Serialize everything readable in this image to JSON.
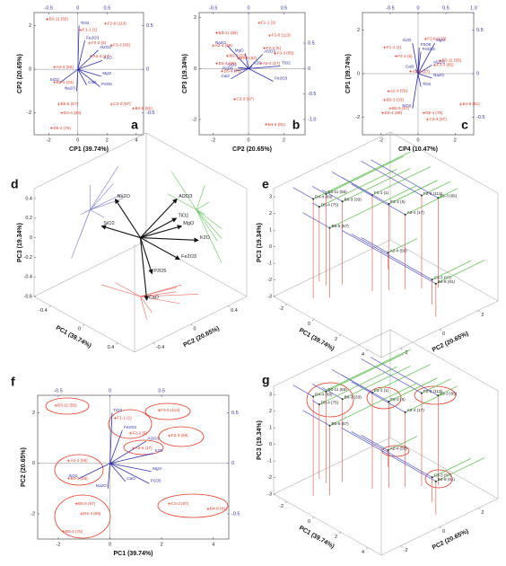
{
  "chart_data": [
    {
      "type": "biplot",
      "panel": "a",
      "xlabel": "CP1 (39.74%)",
      "ylabel": "CP2 (20.65%)",
      "xlim": [
        -3,
        4.5
      ],
      "xticks": [
        -2,
        0,
        2,
        4
      ],
      "ylim": [
        -3,
        2.6
      ],
      "yticks": [
        -2,
        0,
        2
      ],
      "x2lim": [
        -0.75,
        1.125
      ],
      "x2ticks": [
        -0.5,
        0,
        0.5
      ],
      "y2lim": [
        -0.75,
        0.65
      ],
      "y2ticks": [
        -0.5,
        0,
        0.5
      ],
      "vector_color": "#2f2fa8",
      "sample_color": "#e03a24",
      "variables": [
        {
          "name": "TiO2",
          "x": 0.02,
          "y": 0.5
        },
        {
          "name": "Fe2O3",
          "x": 0.12,
          "y": 0.33
        },
        {
          "name": "Al2O3",
          "x": 0.35,
          "y": 0.22
        },
        {
          "name": "K2O",
          "x": 0.42,
          "y": 0.1
        },
        {
          "name": "MgO",
          "x": 0.4,
          "y": -0.08
        },
        {
          "name": "P2O5",
          "x": 0.38,
          "y": -0.2
        },
        {
          "name": "CaO",
          "x": 0.15,
          "y": -0.18
        },
        {
          "name": "Na2O",
          "x": -0.02,
          "y": -0.25
        },
        {
          "name": "SiO2",
          "x": -0.3,
          "y": -0.15
        }
      ],
      "samples": [
        {
          "name": "B3-11 (55)",
          "x": -2.1,
          "y": 2.3
        },
        {
          "name": "F1-1 (1)",
          "x": 0.2,
          "y": 1.8
        },
        {
          "name": "F2-8 (113)",
          "x": 1.9,
          "y": 2.1
        },
        {
          "name": "F2-2 (5)",
          "x": 0.8,
          "y": 1.2
        },
        {
          "name": "F3-3 (65)",
          "x": 2.3,
          "y": 1.1
        },
        {
          "name": "A3-4 (17)",
          "x": 0.9,
          "y": 0.6
        },
        {
          "name": "A2-4 (56)",
          "x": -1.6,
          "y": 0.1
        },
        {
          "name": "B0-3 (33)",
          "x": -1.6,
          "y": -0.6
        },
        {
          "name": "B5-5 (57)",
          "x": -1.3,
          "y": -1.6
        },
        {
          "name": "D4-4 (69)",
          "x": -1.1,
          "y": -2
        },
        {
          "name": "D5-4 (75)",
          "x": -1.8,
          "y": -2.7
        },
        {
          "name": "C3-3 (97)",
          "x": 2.3,
          "y": -1.6
        },
        {
          "name": "B4-8 (81)",
          "x": 3.8,
          "y": -1.8
        }
      ]
    },
    {
      "type": "biplot",
      "panel": "b",
      "xlabel": "CP2 (20.65%)",
      "ylabel": "CP3 (19.34%)",
      "xlim": [
        -2.8,
        3.2
      ],
      "xticks": [
        -2,
        0,
        2
      ],
      "ylim": [
        -2.6,
        2.2
      ],
      "yticks": [
        -2,
        0,
        2
      ],
      "x2lim": [
        -0.7,
        0.8
      ],
      "x2ticks": [
        -0.5,
        0,
        0.5
      ],
      "y2lim": [
        -1.3,
        1.1
      ],
      "y2ticks": [
        0.5,
        0,
        -0.5,
        {
          "value": -1,
          "label": "-1.0"
        }
      ],
      "vector_color": "#2f2fa8",
      "sample_color": "#e03a24",
      "variables": [
        {
          "name": "Na2O",
          "x": -0.3,
          "y": 0.45
        },
        {
          "name": "MgO",
          "x": -0.05,
          "y": 0.3
        },
        {
          "name": "Al2O3",
          "x": 0.2,
          "y": 0.28
        },
        {
          "name": "TiO2",
          "x": 0.45,
          "y": 0.05
        },
        {
          "name": "K2O",
          "x": 0.05,
          "y": 0.05
        },
        {
          "name": "SiO2",
          "x": -0.15,
          "y": 0.02
        },
        {
          "name": "P2O5",
          "x": -0.2,
          "y": -0.05
        },
        {
          "name": "CaO",
          "x": -0.25,
          "y": -0.2
        },
        {
          "name": "Fe2O3",
          "x": 0.35,
          "y": -0.25
        }
      ],
      "samples": [
        {
          "name": "B3-11 (55)",
          "x": -1.8,
          "y": 1.4
        },
        {
          "name": "F1-1 (1)",
          "x": 0.6,
          "y": 1.8
        },
        {
          "name": "F2-8 (113)",
          "x": 1.2,
          "y": 1.3
        },
        {
          "name": "F2-2 (5)",
          "x": 0.9,
          "y": 0.8
        },
        {
          "name": "F3-3 (65)",
          "x": 1.5,
          "y": 0.6
        },
        {
          "name": "A3-4 (17)",
          "x": 0.7,
          "y": 0.2
        },
        {
          "name": "A2-4 (56)",
          "x": -2,
          "y": 0.9
        },
        {
          "name": "B0-3 (33)",
          "x": -1.2,
          "y": 0.5
        },
        {
          "name": "B5-5 (57)",
          "x": -0.6,
          "y": 0.4
        },
        {
          "name": "D4-4 (69)",
          "x": -1.8,
          "y": 0.2
        },
        {
          "name": "D5-4 (75)",
          "x": -1.5,
          "y": -0.1
        },
        {
          "name": "C3-3 (97)",
          "x": -0.8,
          "y": -1.2
        },
        {
          "name": "B4-8 (81)",
          "x": 1,
          "y": -2.2
        }
      ]
    },
    {
      "type": "biplot",
      "panel": "c",
      "xlabel": "CP4 (10.47%)",
      "ylabel": "CP1 (39.74%)",
      "xlim": [
        -3,
        3
      ],
      "xticks": [
        -2,
        0,
        2
      ],
      "ylim": [
        -2.8,
        2.8
      ],
      "yticks": [
        -2,
        0,
        2
      ],
      "x2lim": [
        -1,
        1
      ],
      "x2ticks": [
        -0.5,
        0,
        0.5,
        {
          "value": 1,
          "label": "1.0"
        }
      ],
      "y2lim": [
        -0.7,
        0.7
      ],
      "y2ticks": [
        0.5,
        0,
        -0.5
      ],
      "vector_color": "#2f2fa8",
      "sample_color": "#e03a24",
      "variables": [
        {
          "name": "K2O",
          "x": -0.1,
          "y": 0.35
        },
        {
          "name": "Fe2O3",
          "x": 0.05,
          "y": 0.25
        },
        {
          "name": "P2O5",
          "x": 0.02,
          "y": 0.3
        },
        {
          "name": "MgO",
          "x": 0.3,
          "y": 0.35
        },
        {
          "name": "CaO",
          "x": -0.05,
          "y": 0.05
        },
        {
          "name": "Al2O3",
          "x": 0.25,
          "y": 0.1
        },
        {
          "name": "Na2O",
          "x": 0.25,
          "y": -0.05
        },
        {
          "name": "TiO2",
          "x": 0.05,
          "y": -0.15
        },
        {
          "name": "SiO2",
          "x": -0.1,
          "y": -0.4
        }
      ],
      "samples": [
        {
          "name": "B3-11 (55)",
          "x": 1.2,
          "y": 0.6
        },
        {
          "name": "F1-1 (1)",
          "x": -1.8,
          "y": 1.2
        },
        {
          "name": "F2-8 (113)",
          "x": 0.4,
          "y": 1.6
        },
        {
          "name": "F2-2 (5)",
          "x": -1.2,
          "y": 0.8
        },
        {
          "name": "F3-3 (65)",
          "x": 0.9,
          "y": 0.4
        },
        {
          "name": "A3-4 (17)",
          "x": -0.4,
          "y": 0.1
        },
        {
          "name": "A2-4 (56)",
          "x": -1.6,
          "y": -0.8
        },
        {
          "name": "B0-3 (33)",
          "x": -1.8,
          "y": -1.2
        },
        {
          "name": "B5-5 (57)",
          "x": -1.5,
          "y": -1.6
        },
        {
          "name": "D4-4 (69)",
          "x": -1.9,
          "y": -1.8
        },
        {
          "name": "D5-4 (75)",
          "x": 0.3,
          "y": -1.8
        },
        {
          "name": "C3-3 (97)",
          "x": 0.5,
          "y": -2.1
        },
        {
          "name": "B4-8 (81)",
          "x": 2.3,
          "y": -1.4
        }
      ]
    },
    {
      "type": "loadings3d",
      "panel": "d",
      "xlabel": "PC1 (39.74%)",
      "ylabel": "PC2 (20.65%)",
      "zlabel": "PC3 (19.34%)",
      "xlim": [
        -0.6,
        0.6
      ],
      "xticks": [
        -0.4,
        0,
        0.4
      ],
      "ylim": [
        -0.6,
        0.6
      ],
      "yticks": [
        -0.4,
        0,
        0.4
      ],
      "zlim": [
        -0.6,
        0.5
      ],
      "zticks": [
        -0.6,
        -0.4,
        -0.2,
        0,
        0.2,
        0.4
      ],
      "vector_color": "#111111",
      "floor_color": "#e8655a",
      "left_wall_color": "#7b7bd0",
      "right_wall_color": "#62c45a",
      "variables": [
        {
          "name": "Na2O",
          "x": -0.3,
          "y": 0,
          "z": 0.25
        },
        {
          "name": "SiO2",
          "x": -0.35,
          "y": -0.1,
          "z": 0
        },
        {
          "name": "Al2O3",
          "x": 0.1,
          "y": 0.3,
          "z": 0.3
        },
        {
          "name": "TiO2",
          "x": 0.15,
          "y": 0.25,
          "z": 0.15
        },
        {
          "name": "MgO",
          "x": 0.1,
          "y": 0.35,
          "z": 0
        },
        {
          "name": "K2O",
          "x": 0.3,
          "y": 0.35,
          "z": -0.05
        },
        {
          "name": "Fe2O3",
          "x": 0.3,
          "y": 0.15,
          "z": -0.15
        },
        {
          "name": "P2O5",
          "x": 0.25,
          "y": -0.1,
          "z": -0.2
        },
        {
          "name": "CaO",
          "x": 0.3,
          "y": -0.2,
          "z": -0.4
        }
      ]
    },
    {
      "type": "scores3d",
      "panel": "e",
      "xlabel": "PC1 (39.74%)",
      "ylabel": "PC2 (20.65%)",
      "zlabel": "PC3 (19.34%)",
      "xlim": [
        -3,
        5
      ],
      "xticks": [
        -2,
        0,
        2,
        4
      ],
      "ylim": [
        -3,
        3
      ],
      "yticks": [
        -2,
        0,
        2
      ],
      "zlim": [
        -3,
        3.5
      ],
      "zticks": [
        -3,
        -2,
        -1,
        0,
        1,
        2,
        3
      ],
      "sample_color": "#222222",
      "floor_color": "#e8655a",
      "left_wall_color": "#5a5ac8",
      "right_wall_color": "#55bb44",
      "samples": [
        {
          "name": "B3-11 (55)",
          "x": -2,
          "y": -1,
          "z": 2.5
        },
        {
          "name": "F1-1 (1)",
          "x": 0,
          "y": 0,
          "z": 2.8
        },
        {
          "name": "F2-8 (113)",
          "x": 1.5,
          "y": 1.5,
          "z": 2.6
        },
        {
          "name": "F2-2 (5)",
          "x": 0.5,
          "y": 0.5,
          "z": 2.2
        },
        {
          "name": "F3-3 (65)",
          "x": 2,
          "y": 2,
          "z": 2.4
        },
        {
          "name": "A3-4 (17)",
          "x": 1,
          "y": 1,
          "z": 1.5
        },
        {
          "name": "A2-4 (56)",
          "x": -1,
          "y": 1.5,
          "z": -2
        },
        {
          "name": "B0-3 (33)",
          "x": -1.5,
          "y": -0.5,
          "z": 2
        },
        {
          "name": "B5-5 (57)",
          "x": -1,
          "y": -1.5,
          "z": 1.2
        },
        {
          "name": "D4-4 (69)",
          "x": -1.5,
          "y": -2,
          "z": 3
        },
        {
          "name": "D5-4 (75)",
          "x": -2.5,
          "y": -1,
          "z": 1.5
        },
        {
          "name": "C3-3 (97)",
          "x": 3,
          "y": 1,
          "z": -1.5
        },
        {
          "name": "B4-8 (81)",
          "x": 4,
          "y": 0.5,
          "z": -1
        }
      ]
    },
    {
      "type": "biplot",
      "panel": "f",
      "xlabel": "PC1 (39.74%)",
      "ylabel": "PC2 (20.65%)",
      "xlim": [
        -2.8,
        4.6
      ],
      "xticks": [
        -2,
        0,
        2,
        4
      ],
      "ylim": [
        -3,
        2.7
      ],
      "yticks": [
        -2,
        0,
        2
      ],
      "x2lim": [
        -0.7,
        1.15
      ],
      "x2ticks": [
        -0.5,
        0,
        0.5
      ],
      "y2lim": [
        -0.75,
        0.675
      ],
      "y2ticks": [
        -0.5,
        0,
        0.5
      ],
      "vector_color": "#2f2fa8",
      "sample_color": "#e03a24",
      "variables": [
        {
          "name": "TiO2",
          "x": 0.02,
          "y": 0.5
        },
        {
          "name": "Fe2O3",
          "x": 0.12,
          "y": 0.33
        },
        {
          "name": "Al2O3",
          "x": 0.35,
          "y": 0.22
        },
        {
          "name": "K2O",
          "x": 0.42,
          "y": 0.1
        },
        {
          "name": "MgO",
          "x": 0.4,
          "y": -0.08
        },
        {
          "name": "P2O5",
          "x": 0.38,
          "y": -0.2
        },
        {
          "name": "CaO",
          "x": 0.15,
          "y": -0.18
        },
        {
          "name": "Na2O",
          "x": -0.02,
          "y": -0.25
        },
        {
          "name": "SiO2",
          "x": -0.3,
          "y": -0.15
        }
      ],
      "samples": [
        {
          "name": "B3-11 (55)",
          "x": -2.1,
          "y": 2.3
        },
        {
          "name": "F1-1 (1)",
          "x": 0.2,
          "y": 1.8
        },
        {
          "name": "F2-8 (113)",
          "x": 1.9,
          "y": 2.1
        },
        {
          "name": "F2-2 (5)",
          "x": 0.8,
          "y": 1.2
        },
        {
          "name": "F3-3 (65)",
          "x": 2.3,
          "y": 1.1
        },
        {
          "name": "A3-4 (17)",
          "x": 0.9,
          "y": 0.6
        },
        {
          "name": "A2-4 (56)",
          "x": -1.6,
          "y": 0.1
        },
        {
          "name": "B0-3 (33)",
          "x": -1.6,
          "y": -0.6
        },
        {
          "name": "B5-5 (57)",
          "x": -1.3,
          "y": -1.6
        },
        {
          "name": "D4-4 (69)",
          "x": -1.1,
          "y": -2
        },
        {
          "name": "D5-4 (75)",
          "x": -1.8,
          "y": -2.7
        },
        {
          "name": "C3-3 (97)",
          "x": 2.3,
          "y": -1.6
        },
        {
          "name": "B4-8 (81)",
          "x": 3.8,
          "y": -1.8
        }
      ]
    },
    {
      "type": "scores3d",
      "panel": "g",
      "xlabel": "PC1 (39.74%)",
      "ylabel": "PC2 (20.65%)",
      "zlabel": "PC3 (19.34%)",
      "xlim": [
        -3,
        5
      ],
      "xticks": [
        -2,
        0,
        2,
        4
      ],
      "ylim": [
        -3,
        3
      ],
      "yticks": [
        -2,
        0,
        2
      ],
      "zlim": [
        -3,
        3.5
      ],
      "zticks": [
        -3,
        -2,
        -1,
        0,
        1,
        2,
        3
      ],
      "sample_color": "#222222",
      "floor_color": "#e8655a",
      "left_wall_color": "#5a5ac8",
      "right_wall_color": "#55bb44",
      "samples": [
        {
          "name": "B3-11 (55)",
          "x": -2,
          "y": -1,
          "z": 2.5
        },
        {
          "name": "F1-1 (1)",
          "x": 0,
          "y": 0,
          "z": 2.8
        },
        {
          "name": "F2-8 (113)",
          "x": 1.5,
          "y": 1.5,
          "z": 2.6
        },
        {
          "name": "F2-2 (5)",
          "x": 0.5,
          "y": 0.5,
          "z": 2.2
        },
        {
          "name": "F3-3 (65)",
          "x": 2,
          "y": 2,
          "z": 2.4
        },
        {
          "name": "A3-4 (17)",
          "x": 1,
          "y": 1,
          "z": 1.5
        },
        {
          "name": "A2-4 (56)",
          "x": -1,
          "y": 1.5,
          "z": -2
        },
        {
          "name": "B0-3 (33)",
          "x": -1.5,
          "y": -0.5,
          "z": 2
        },
        {
          "name": "B5-5 (57)",
          "x": -1,
          "y": -1.5,
          "z": 1.2
        },
        {
          "name": "D4-4 (69)",
          "x": -1.5,
          "y": -2,
          "z": 3
        },
        {
          "name": "D5-4 (75)",
          "x": -2.5,
          "y": -1,
          "z": 1.5
        },
        {
          "name": "C3-3 (97)",
          "x": 3,
          "y": 1,
          "z": -1.5
        },
        {
          "name": "B4-8 (81)",
          "x": 4,
          "y": 0.5,
          "z": -1
        }
      ]
    }
  ]
}
